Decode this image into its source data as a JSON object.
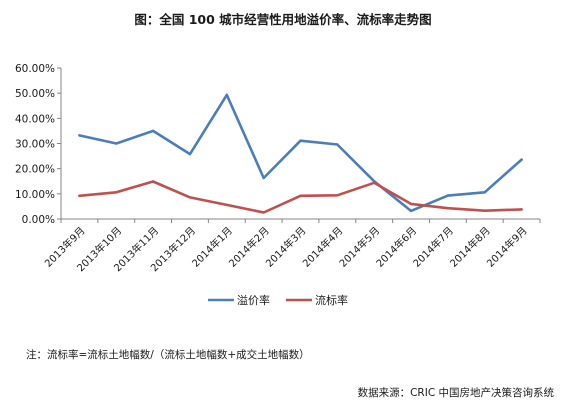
{
  "chart_data": {
    "type": "line",
    "title": "图：全国 100 城市经营性用地溢价率、流标率走势图",
    "x": [
      "2013年9月",
      "2013年10月",
      "2013年11月",
      "2013年12月",
      "2014年1月",
      "2014年2月",
      "2014年3月",
      "2014年4月",
      "2014年5月",
      "2014年6月",
      "2014年7月",
      "2014年8月",
      "2014年9月"
    ],
    "series": [
      {
        "name": "溢价率",
        "color": "#4a7ebb",
        "values": [
          0.332,
          0.3,
          0.35,
          0.258,
          0.493,
          0.163,
          0.311,
          0.296,
          0.15,
          0.032,
          0.093,
          0.106,
          0.236
        ]
      },
      {
        "name": "流标率",
        "color": "#c0504d",
        "values": [
          0.092,
          0.106,
          0.149,
          0.086,
          0.056,
          0.026,
          0.092,
          0.094,
          0.144,
          0.06,
          0.043,
          0.033,
          0.038
        ]
      }
    ],
    "ylim": [
      0,
      0.6
    ],
    "y_ticks": [
      "0.00%",
      "10.00%",
      "20.00%",
      "30.00%",
      "40.00%",
      "50.00%",
      "60.00%"
    ],
    "grid": false,
    "legend_position": "bottom"
  },
  "footnote": "注：流标率=流标土地幅数/（流标土地幅数+成交土地幅数）",
  "source": "数据来源：CRIC 中国房地产决策咨询系统"
}
